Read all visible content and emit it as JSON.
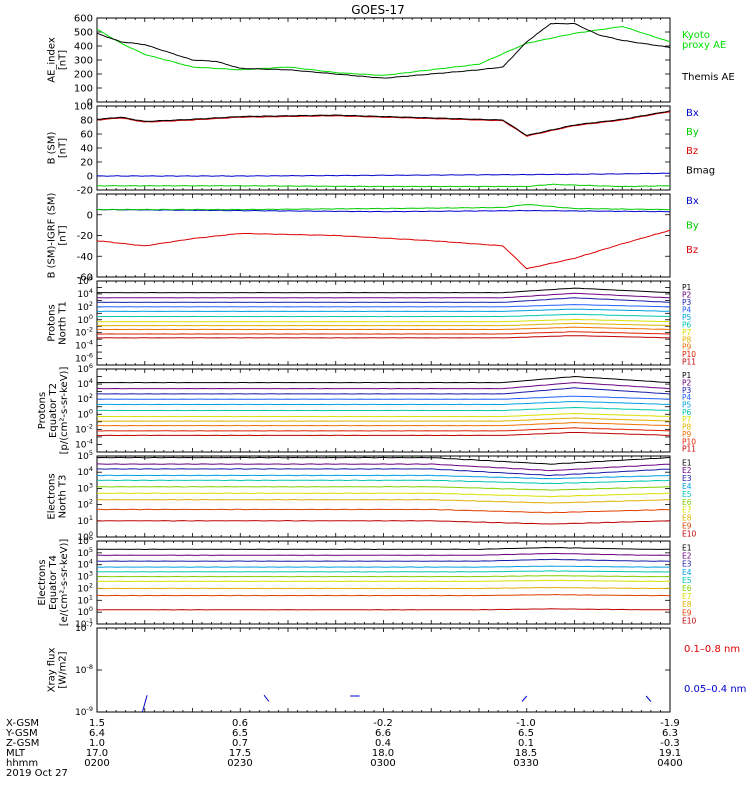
{
  "title": "GOES-17",
  "footer": {
    "rows": [
      {
        "label": "X-GSM",
        "values": [
          "1.5",
          "0.6",
          "-0.2",
          "-1.0",
          "-1.9"
        ]
      },
      {
        "label": "Y-GSM",
        "values": [
          "6.4",
          "6.5",
          "6.6",
          "6.5",
          "6.3"
        ]
      },
      {
        "label": "Z-GSM",
        "values": [
          "1.0",
          "0.7",
          "0.4",
          "0.1",
          "-0.3"
        ]
      },
      {
        "label": "MLT",
        "values": [
          "17.0",
          "17.5",
          "18.0",
          "18.5",
          "19.1"
        ]
      },
      {
        "label": "hhmm",
        "values": [
          "0200",
          "0230",
          "0300",
          "0330",
          "0400"
        ]
      }
    ],
    "date": "2019 Oct 27"
  },
  "chart_data": [
    {
      "type": "line",
      "ylabel": [
        "AE_index",
        "[nT]"
      ],
      "ylim": [
        0,
        600
      ],
      "yticks": [
        "0",
        "100",
        "200",
        "300",
        "400",
        "500",
        "600"
      ],
      "x_range": [
        "0200",
        "0400"
      ],
      "series": [
        {
          "name": "Kyoto proxy AE",
          "color": "#00dd00",
          "t": [
            0,
            5,
            10,
            20,
            30,
            40,
            50,
            60,
            70,
            80,
            90,
            100,
            110,
            120
          ],
          "values": [
            520,
            420,
            340,
            250,
            230,
            250,
            210,
            190,
            230,
            270,
            420,
            490,
            540,
            430
          ]
        },
        {
          "name": "Themis AE",
          "color": "#000000",
          "t": [
            0,
            5,
            10,
            20,
            25,
            30,
            40,
            50,
            60,
            70,
            80,
            85,
            90,
            95,
            100,
            105,
            110,
            120
          ],
          "values": [
            490,
            430,
            410,
            300,
            290,
            240,
            230,
            200,
            170,
            200,
            230,
            250,
            430,
            560,
            560,
            480,
            440,
            390
          ]
        }
      ],
      "legend": [
        {
          "text": "Kyoto",
          "color": "#00dd00"
        },
        {
          "text": "proxy AE",
          "color": "#00dd00"
        },
        {
          "text": "Themis AE",
          "color": "#000000"
        }
      ]
    },
    {
      "type": "line",
      "ylabel": [
        "B (SM)",
        "[nT]"
      ],
      "ylim": [
        -20,
        100
      ],
      "yticks": [
        "-20",
        "0",
        "20",
        "40",
        "60",
        "80",
        "100"
      ],
      "series": [
        {
          "name": "Bx",
          "color": "#0000cc",
          "t": [
            0,
            30,
            60,
            90,
            110,
            120
          ],
          "values": [
            0,
            0,
            1,
            2,
            3,
            4
          ]
        },
        {
          "name": "By",
          "color": "#00cc00",
          "t": [
            0,
            30,
            60,
            90,
            95,
            110,
            120
          ],
          "values": [
            -14,
            -14,
            -15,
            -15,
            -12,
            -15,
            -14
          ]
        },
        {
          "name": "Bz",
          "color": "#dd0000",
          "t": [
            0,
            5,
            10,
            20,
            30,
            50,
            70,
            85,
            90,
            100,
            110,
            120
          ],
          "values": [
            80,
            83,
            77,
            80,
            84,
            86,
            82,
            79,
            57,
            72,
            80,
            92
          ]
        },
        {
          "name": "Bmag",
          "color": "#000000",
          "t": [
            0,
            5,
            10,
            20,
            30,
            50,
            70,
            85,
            90,
            100,
            110,
            120
          ],
          "values": [
            81,
            84,
            78,
            81,
            85,
            87,
            83,
            80,
            58,
            73,
            81,
            93
          ]
        }
      ],
      "legend": [
        {
          "text": "Bx",
          "color": "#0000cc"
        },
        {
          "text": "By",
          "color": "#00cc00"
        },
        {
          "text": "Bz",
          "color": "#dd0000"
        },
        {
          "text": "Bmag",
          "color": "#000000"
        }
      ]
    },
    {
      "type": "line",
      "ylabel": [
        "B (SM)-IGRF (SM)",
        "[nT]"
      ],
      "ylim": [
        -60,
        20
      ],
      "yticks": [
        "-60",
        "-40",
        "-20",
        "0"
      ],
      "series": [
        {
          "name": "Bx",
          "color": "#0000cc",
          "t": [
            0,
            30,
            60,
            90,
            120
          ],
          "values": [
            5,
            4,
            3,
            4,
            3
          ]
        },
        {
          "name": "By",
          "color": "#00cc00",
          "t": [
            0,
            30,
            60,
            85,
            90,
            100,
            120
          ],
          "values": [
            5,
            5,
            6,
            7,
            10,
            6,
            5
          ]
        },
        {
          "name": "Bz",
          "color": "#dd0000",
          "t": [
            0,
            10,
            20,
            30,
            50,
            70,
            85,
            90,
            100,
            110,
            120
          ],
          "values": [
            -25,
            -30,
            -23,
            -18,
            -20,
            -25,
            -30,
            -52,
            -42,
            -28,
            -15
          ]
        }
      ],
      "legend": [
        {
          "text": "Bx",
          "color": "#0000cc"
        },
        {
          "text": "By",
          "color": "#00cc00"
        },
        {
          "text": "Bz",
          "color": "#dd0000"
        }
      ]
    },
    {
      "type": "line",
      "log": true,
      "ylabel": [
        "Protons",
        "North T1"
      ],
      "ylim_exp": [
        -7,
        6
      ],
      "yticks_exp": [
        -6,
        -4,
        -2,
        0,
        2,
        4,
        6
      ],
      "series_levels": [
        4.2,
        3.4,
        2.7,
        2.0,
        1.3,
        0.5,
        -0.3,
        -0.9,
        -1.5,
        -2.2,
        -2.8
      ],
      "bump": {
        "start": 85,
        "peak": 100,
        "end": 120,
        "amp": 0.7
      },
      "legend": [
        {
          "text": "P1",
          "color": "#000000"
        },
        {
          "text": "P2",
          "color": "#6a0080"
        },
        {
          "text": "P3",
          "color": "#1a1aaa"
        },
        {
          "text": "P4",
          "color": "#2060ff"
        },
        {
          "text": "P5",
          "color": "#00a0e0"
        },
        {
          "text": "P6",
          "color": "#00c8b0"
        },
        {
          "text": "P7",
          "color": "#d8e000"
        },
        {
          "text": "P8",
          "color": "#e0b000"
        },
        {
          "text": "P9",
          "color": "#f07000"
        },
        {
          "text": "P10",
          "color": "#e02000"
        },
        {
          "text": "P11",
          "color": "#c00000"
        }
      ]
    },
    {
      "type": "line",
      "log": true,
      "ylabel": [
        "Protons",
        "Equator T2",
        "[p/(cm²-s-sr-keV)]"
      ],
      "ylim_exp": [
        -5,
        6
      ],
      "yticks_exp": [
        -4,
        -2,
        0,
        2,
        4,
        6
      ],
      "series_levels": [
        4.2,
        3.4,
        2.7,
        2.0,
        1.3,
        0.5,
        -0.3,
        -0.9,
        -1.5,
        -2.2,
        -2.8
      ],
      "bump": {
        "start": 85,
        "peak": 100,
        "end": 120,
        "amp": 0.8
      },
      "legend": [
        {
          "text": "P1",
          "color": "#000000"
        },
        {
          "text": "P2",
          "color": "#6a0080"
        },
        {
          "text": "P3",
          "color": "#1a1aaa"
        },
        {
          "text": "P4",
          "color": "#2060ff"
        },
        {
          "text": "P5",
          "color": "#00a0e0"
        },
        {
          "text": "P6",
          "color": "#00c8b0"
        },
        {
          "text": "P7",
          "color": "#d8e000"
        },
        {
          "text": "P8",
          "color": "#e0b000"
        },
        {
          "text": "P9",
          "color": "#f07000"
        },
        {
          "text": "P10",
          "color": "#e02000"
        },
        {
          "text": "P11",
          "color": "#c00000"
        }
      ]
    },
    {
      "type": "line",
      "log": true,
      "ylabel": [
        "Electrons",
        "North T3"
      ],
      "ylim_exp": [
        0,
        5
      ],
      "yticks_exp": [
        0,
        1,
        2,
        3,
        4,
        5
      ],
      "series_levels": [
        4.9,
        4.5,
        4.2,
        3.8,
        3.5,
        3.1,
        2.7,
        2.3,
        1.7,
        1.0
      ],
      "dip": {
        "start": 70,
        "peak": 95,
        "end": 120,
        "amp": -0.4
      },
      "legend": [
        {
          "text": "E1",
          "color": "#000000"
        },
        {
          "text": "E2",
          "color": "#6a0080"
        },
        {
          "text": "E3",
          "color": "#1a1aaa"
        },
        {
          "text": "E4",
          "color": "#00a0e0"
        },
        {
          "text": "E5",
          "color": "#00c8b0"
        },
        {
          "text": "E6",
          "color": "#80d000"
        },
        {
          "text": "E7",
          "color": "#d8e000"
        },
        {
          "text": "E8",
          "color": "#e0b000"
        },
        {
          "text": "E9",
          "color": "#e04000"
        },
        {
          "text": "E10",
          "color": "#c00000"
        }
      ]
    },
    {
      "type": "line",
      "log": true,
      "ylabel": [
        "Electrons",
        "Equator T4",
        "[e/(cm²-s-sr-keV)]"
      ],
      "ylim_exp": [
        -1,
        6
      ],
      "yticks_exp": [
        -1,
        0,
        1,
        2,
        3,
        4,
        5,
        6
      ],
      "series_levels": [
        5.3,
        4.8,
        4.3,
        3.8,
        3.4,
        3.0,
        2.6,
        2.0,
        1.4,
        0.2
      ],
      "dip": {
        "start": 80,
        "peak": 95,
        "end": 115,
        "amp": 0.15
      },
      "legend": [
        {
          "text": "E1",
          "color": "#000000"
        },
        {
          "text": "E2",
          "color": "#6a0080"
        },
        {
          "text": "E3",
          "color": "#1a1aaa"
        },
        {
          "text": "E4",
          "color": "#00a0e0"
        },
        {
          "text": "E5",
          "color": "#00c8b0"
        },
        {
          "text": "E6",
          "color": "#80d000"
        },
        {
          "text": "E7",
          "color": "#d8e000"
        },
        {
          "text": "E8",
          "color": "#e0b000"
        },
        {
          "text": "E9",
          "color": "#e04000"
        },
        {
          "text": "E10",
          "color": "#c00000"
        }
      ]
    },
    {
      "type": "line",
      "log": true,
      "ylabel": [
        "Xray flux",
        "[W/m2]"
      ],
      "ylim_exp": [
        -9,
        -7
      ],
      "yticks_exp": [
        -9,
        -8,
        -7
      ],
      "segments": [
        {
          "t": [
            9.5,
            10.5
          ],
          "values": [
            -9.0,
            -8.6
          ],
          "color": "#0000cc"
        },
        {
          "t": [
            35,
            36
          ],
          "values": [
            -8.6,
            -8.75
          ],
          "color": "#0000cc"
        },
        {
          "t": [
            53,
            55
          ],
          "values": [
            -8.62,
            -8.62
          ],
          "color": "#0000cc"
        },
        {
          "t": [
            89,
            90
          ],
          "values": [
            -8.75,
            -8.62
          ],
          "color": "#0000cc"
        },
        {
          "t": [
            115,
            116
          ],
          "values": [
            -8.62,
            -8.75
          ],
          "color": "#0000cc"
        }
      ],
      "legend": [
        {
          "text": "0.1–0.8 nm",
          "color": "#dd0000"
        },
        {
          "text": "0.05–0.4 nm",
          "color": "#0000cc"
        }
      ]
    }
  ]
}
